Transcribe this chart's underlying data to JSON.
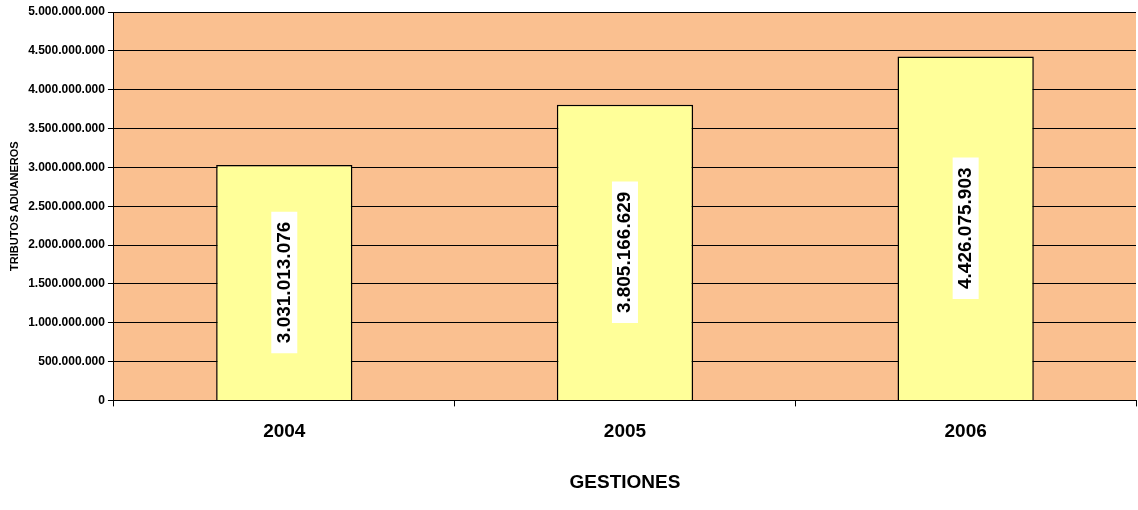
{
  "chart_data": {
    "type": "bar",
    "xlabel": "GESTIONES",
    "ylabel": "TRIBUTOS ADUANEROS",
    "categories": [
      "2004",
      "2005",
      "2006"
    ],
    "values": [
      3031013076,
      3805166629,
      4426075903
    ],
    "value_labels": [
      "3.031.013.076",
      "3.805.166.629",
      "4.426.075.903"
    ],
    "color": "#ffff99",
    "ylim": [
      0,
      5000000000
    ],
    "yticks": [
      0,
      {
        "value": 500000000,
        "label": "500.000.000"
      },
      {
        "value": 1000000000,
        "label": "1.000.000.000"
      },
      {
        "value": 1500000000,
        "label": "1.500.000.000"
      },
      {
        "value": 2000000000,
        "label": "2.000.000.000"
      },
      {
        "value": 2500000000,
        "label": "2.500.000.000"
      },
      {
        "value": 3000000000,
        "label": "3.000.000.000"
      },
      {
        "value": 3500000000,
        "label": "3.500.000.000"
      },
      {
        "value": 4000000000,
        "label": "4.000.000.000"
      },
      {
        "value": 4500000000,
        "label": "4.500.000.000"
      },
      {
        "value": 5000000000,
        "label": "5.000.000.000"
      }
    ],
    "grid": "y",
    "legend": false
  }
}
